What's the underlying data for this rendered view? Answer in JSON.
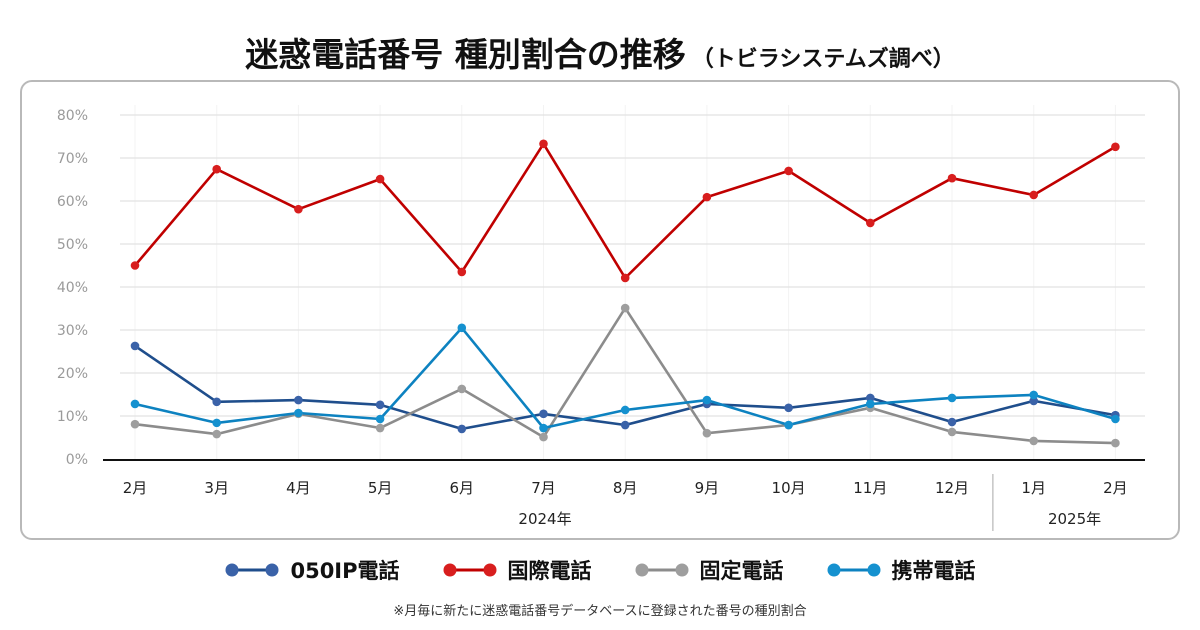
{
  "title": {
    "main": "迷惑電話番号 種別割合の推移",
    "sub": "（トビラシステムズ調べ）"
  },
  "chart_data": {
    "type": "line",
    "title": "迷惑電話番号 種別割合の推移（トビラシステムズ調べ）",
    "xlabel": "",
    "ylabel": "",
    "ylim": [
      0,
      80
    ],
    "grid": true,
    "legend_position": "bottom",
    "y_ticks": [
      "0%",
      "10%",
      "20%",
      "30%",
      "40%",
      "50%",
      "60%",
      "70%",
      "80%"
    ],
    "categories": [
      "2月",
      "3月",
      "4月",
      "5月",
      "6月",
      "7月",
      "8月",
      "9月",
      "10月",
      "11月",
      "12月",
      "1月",
      "2月"
    ],
    "year_groups": [
      {
        "label": "2024年",
        "span": 11
      },
      {
        "label": "2025年",
        "span": 2
      }
    ],
    "series": [
      {
        "name": "050IP電話",
        "color": "#1f4e8c",
        "marker_color": "#3a62a8",
        "values": [
          26.3,
          13.3,
          13.7,
          12.6,
          7.0,
          10.5,
          7.9,
          12.8,
          11.9,
          14.2,
          8.6,
          13.5,
          10.2
        ]
      },
      {
        "name": "国際電話",
        "color": "#c00000",
        "marker_color": "#d81e1e",
        "values": [
          45.0,
          67.4,
          58.1,
          65.1,
          43.5,
          73.3,
          42.1,
          60.9,
          67.0,
          54.9,
          65.3,
          61.4,
          72.6
        ]
      },
      {
        "name": "固定電話",
        "color": "#8c8c8c",
        "marker_color": "#9e9e9e",
        "values": [
          8.1,
          5.8,
          10.5,
          7.2,
          16.3,
          5.1,
          35.1,
          6.0,
          7.9,
          11.9,
          6.3,
          4.2,
          3.7
        ]
      },
      {
        "name": "携帯電話",
        "color": "#0d82c0",
        "marker_color": "#1591cf",
        "values": [
          12.8,
          8.4,
          10.7,
          9.3,
          30.5,
          7.2,
          11.4,
          13.7,
          7.9,
          12.8,
          14.2,
          14.9,
          9.3
        ]
      }
    ],
    "footnote": "※月毎に新たに迷惑電話番号データベースに登録された番号の種別割合"
  }
}
